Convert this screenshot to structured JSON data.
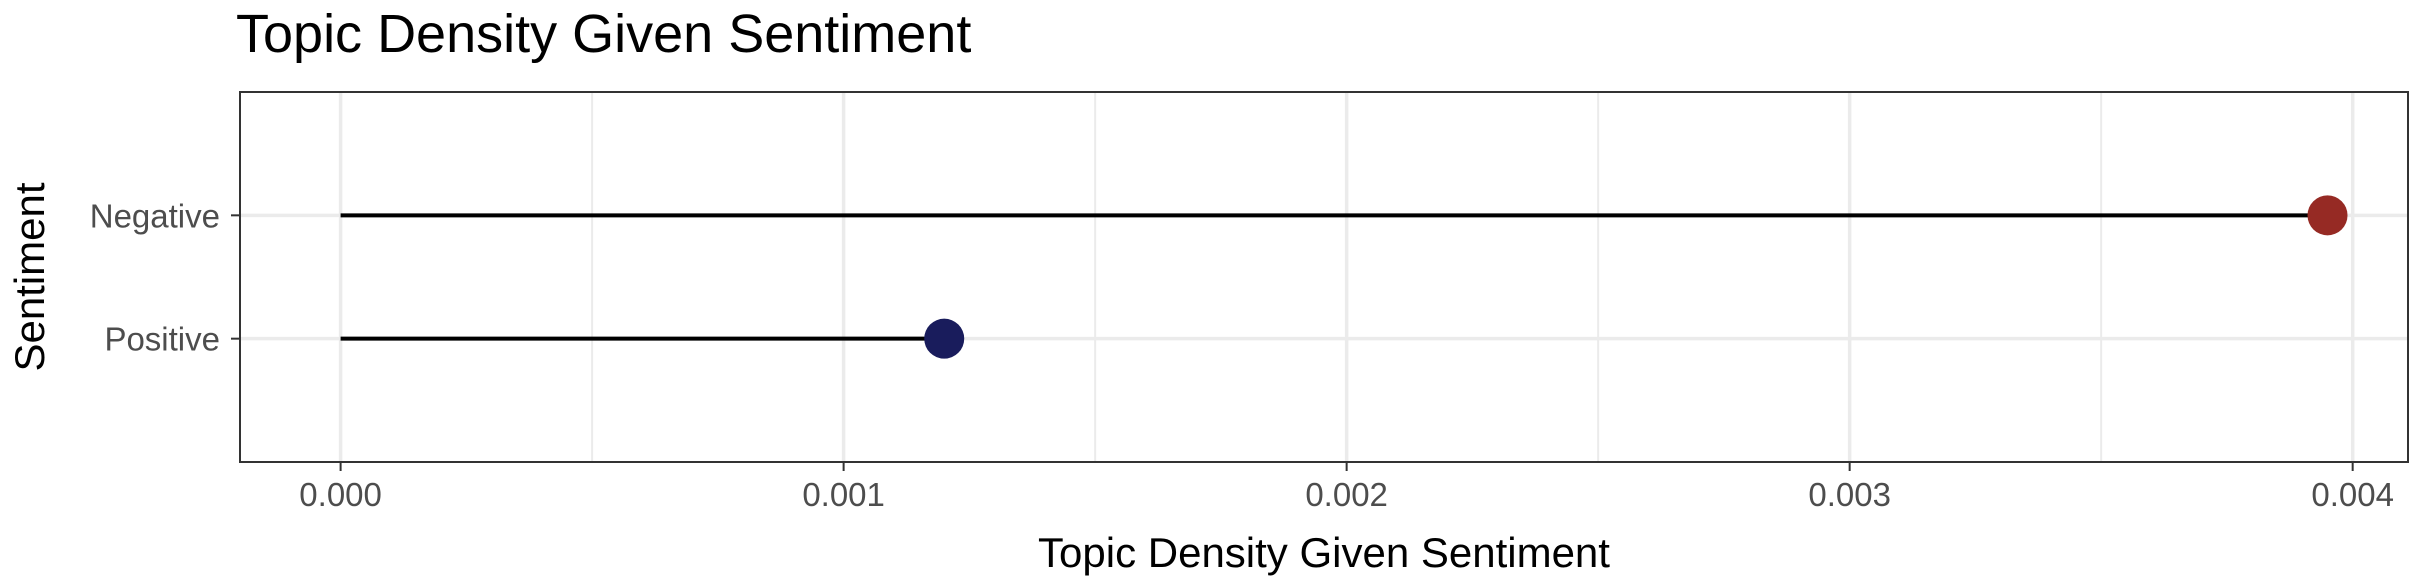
{
  "chart_data": {
    "type": "lollipop",
    "title": "Topic Density Given Sentiment",
    "xlabel": "Topic Density Given Sentiment",
    "ylabel": "Sentiment",
    "xlim": [
      -0.0002,
      0.00411
    ],
    "x_ticks": [
      "0.000",
      "0.001",
      "0.002",
      "0.003",
      "0.004"
    ],
    "x_tick_values": [
      0,
      0.001,
      0.002,
      0.003,
      0.004
    ],
    "x_minor_values": [
      0.0005,
      0.0015,
      0.0025,
      0.0035
    ],
    "categories": [
      "Negative",
      "Positive"
    ],
    "values": [
      0.00395,
      0.0012
    ],
    "colors": [
      "#962a24",
      "#191c5c"
    ],
    "grid": true,
    "legend": "none"
  }
}
